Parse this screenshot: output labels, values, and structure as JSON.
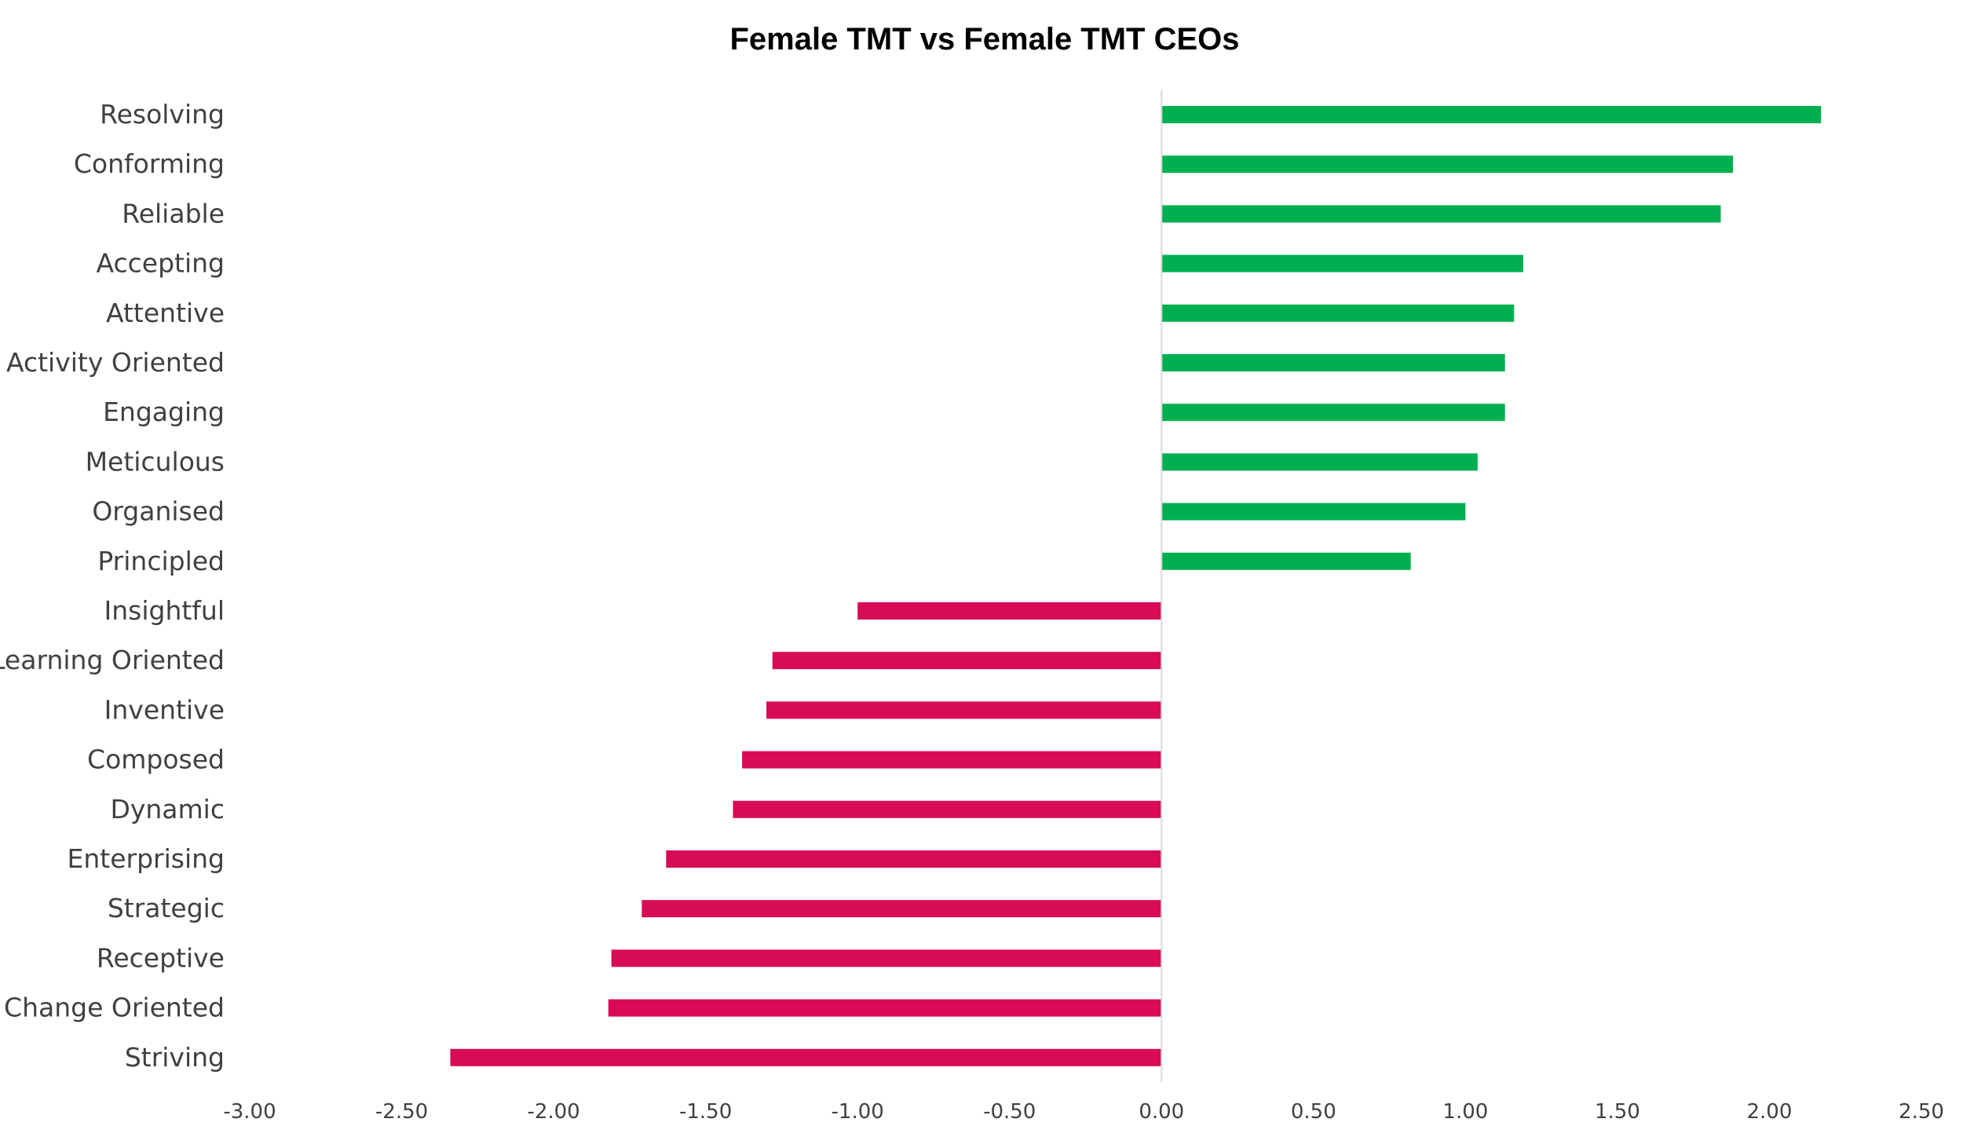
{
  "chart_data": {
    "type": "bar",
    "orientation": "horizontal",
    "title": "Female TMT vs Female TMT CEOs",
    "xlabel": "",
    "ylabel": "",
    "xlim": [
      -3.0,
      2.5
    ],
    "x_ticks": [
      "-3.00",
      "-2.50",
      "-2.00",
      "-1.50",
      "-1.00",
      "-0.50",
      "0.00",
      "0.50",
      "1.00",
      "1.50",
      "2.00",
      "2.50"
    ],
    "grid": false,
    "legend": "none",
    "categories": [
      "Resolving",
      "Conforming",
      "Reliable",
      "Accepting",
      "Attentive",
      "Activity Oriented",
      "Engaging",
      "Meticulous",
      "Organised",
      "Principled",
      "Insightful",
      "Learning Oriented",
      "Inventive",
      "Composed",
      "Dynamic",
      "Enterprising",
      "Strategic",
      "Receptive",
      "Change Oriented",
      "Striving"
    ],
    "values": [
      2.17,
      1.88,
      1.84,
      1.19,
      1.16,
      1.13,
      1.13,
      1.04,
      1.0,
      0.82,
      -1.0,
      -1.28,
      -1.3,
      -1.38,
      -1.41,
      -1.63,
      -1.71,
      -1.81,
      -1.82,
      -2.34
    ],
    "colors": {
      "positive": "#00B050",
      "negative": "#D80B55",
      "axis": "#D9D9D9"
    }
  }
}
